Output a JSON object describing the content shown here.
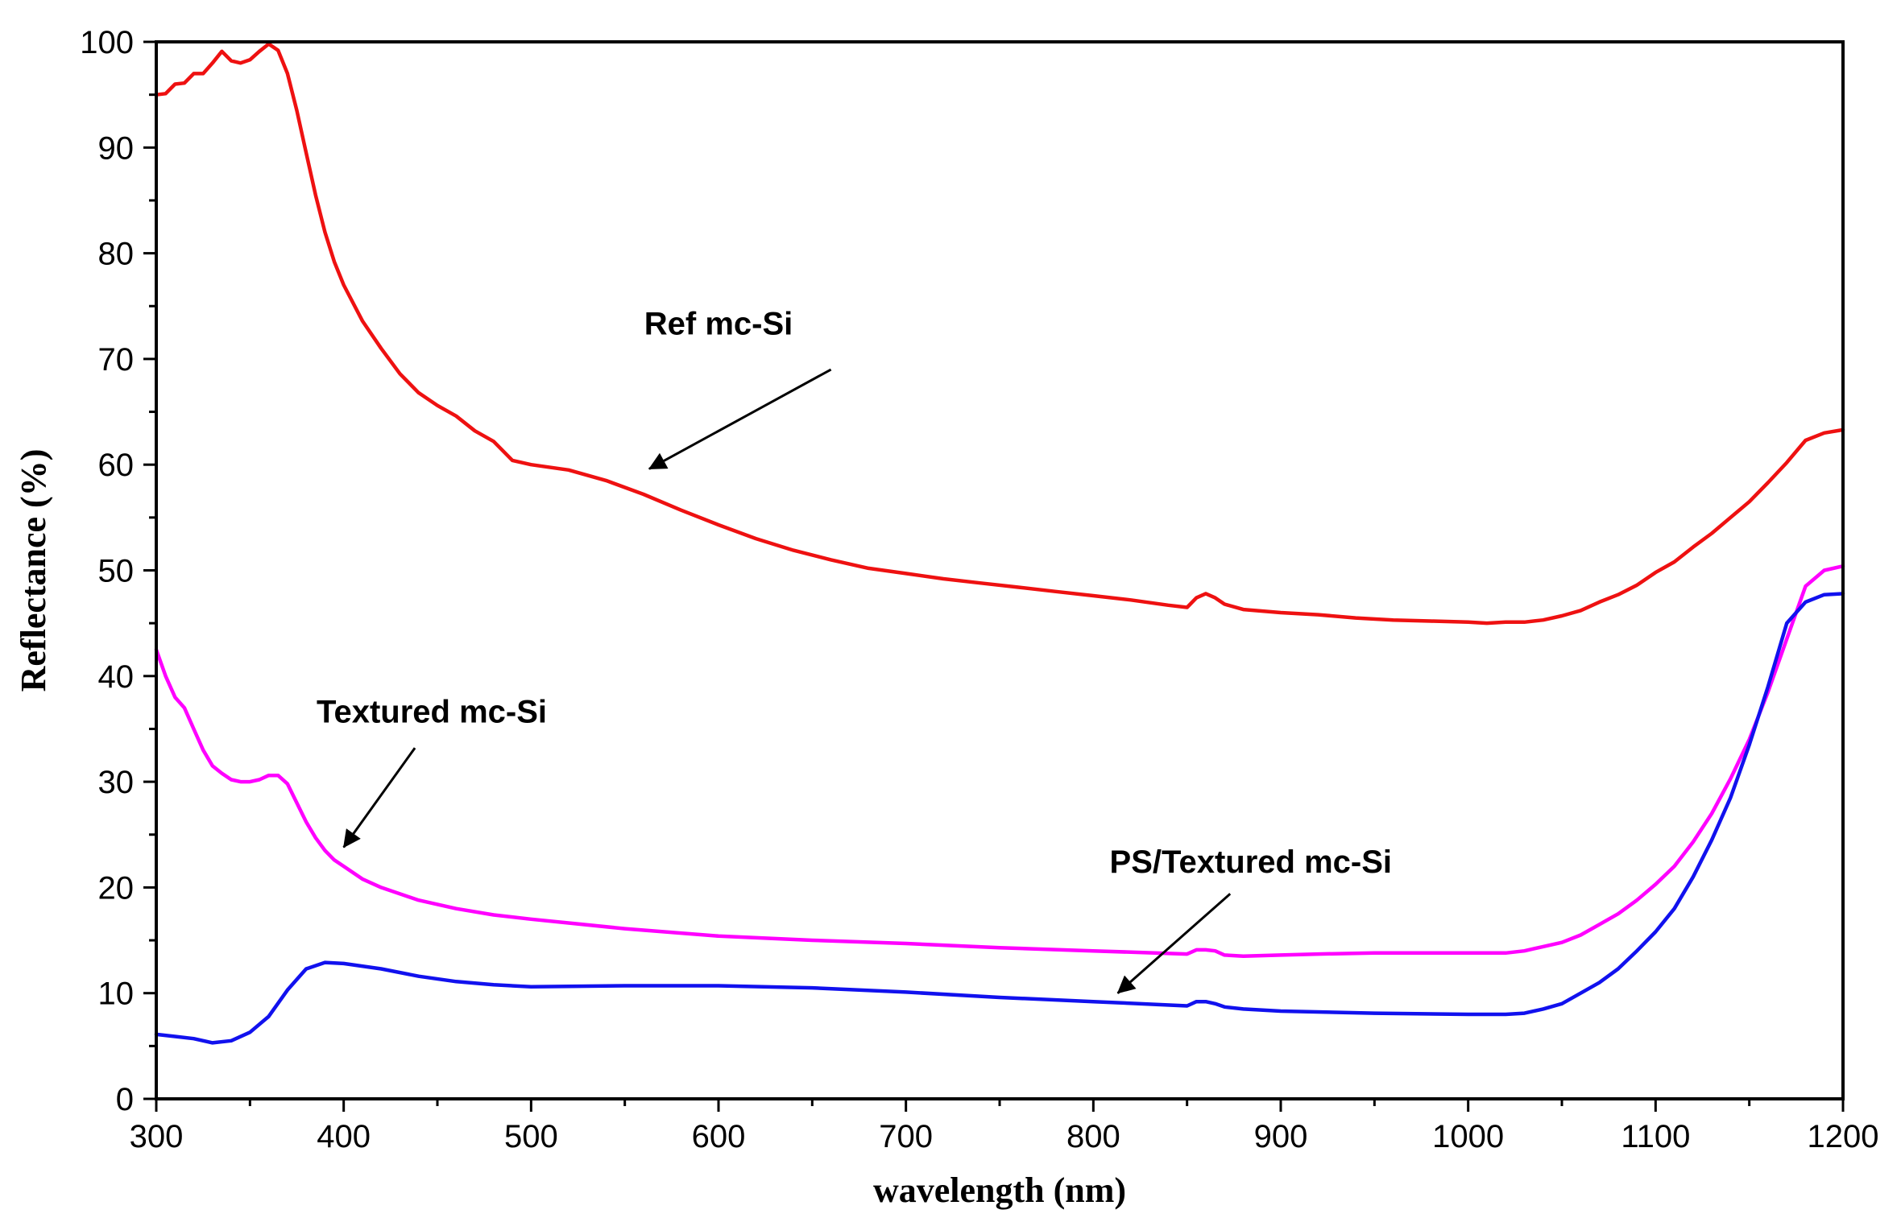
{
  "chart_data": {
    "type": "line",
    "title": "",
    "xlabel": "wavelength (nm)",
    "ylabel": "Reflectance (%)",
    "xlim": [
      300,
      1200
    ],
    "ylim": [
      0,
      100
    ],
    "x_ticks": [
      300,
      400,
      500,
      600,
      700,
      800,
      900,
      1000,
      1100,
      1200
    ],
    "y_ticks": [
      0,
      10,
      20,
      30,
      40,
      50,
      60,
      70,
      80,
      90,
      100
    ],
    "x_tick_labels": [
      "300",
      "400",
      "500",
      "600",
      "700",
      "800",
      "900",
      "1000",
      "1100",
      "1200"
    ],
    "y_tick_labels": [
      "0",
      "10",
      "20",
      "30",
      "40",
      "50",
      "60",
      "70",
      "80",
      "90",
      "100"
    ],
    "grid": false,
    "series": [
      {
        "name": "Ref mc-Si",
        "color": "#ee1111",
        "points": [
          [
            300,
            95
          ],
          [
            305,
            95.1
          ],
          [
            310,
            96
          ],
          [
            315,
            96.1
          ],
          [
            320,
            97
          ],
          [
            325,
            97
          ],
          [
            330,
            98
          ],
          [
            335,
            99.1
          ],
          [
            340,
            98.2
          ],
          [
            345,
            98
          ],
          [
            350,
            98.3
          ],
          [
            355,
            99.1
          ],
          [
            360,
            99.8
          ],
          [
            365,
            99.2
          ],
          [
            370,
            97
          ],
          [
            375,
            93.5
          ],
          [
            380,
            89.5
          ],
          [
            385,
            85.5
          ],
          [
            390,
            82
          ],
          [
            395,
            79.2
          ],
          [
            400,
            77
          ],
          [
            410,
            73.6
          ],
          [
            420,
            71
          ],
          [
            430,
            68.6
          ],
          [
            440,
            66.8
          ],
          [
            450,
            65.6
          ],
          [
            460,
            64.6
          ],
          [
            470,
            63.2
          ],
          [
            480,
            62.2
          ],
          [
            490,
            60.4
          ],
          [
            500,
            60
          ],
          [
            520,
            59.5
          ],
          [
            540,
            58.5
          ],
          [
            560,
            57.2
          ],
          [
            580,
            55.7
          ],
          [
            600,
            54.3
          ],
          [
            620,
            53
          ],
          [
            640,
            51.9
          ],
          [
            660,
            51
          ],
          [
            680,
            50.2
          ],
          [
            700,
            49.7
          ],
          [
            720,
            49.2
          ],
          [
            740,
            48.8
          ],
          [
            760,
            48.4
          ],
          [
            780,
            48
          ],
          [
            800,
            47.6
          ],
          [
            820,
            47.2
          ],
          [
            840,
            46.7
          ],
          [
            850,
            46.5
          ],
          [
            855,
            47.4
          ],
          [
            860,
            47.8
          ],
          [
            865,
            47.4
          ],
          [
            870,
            46.8
          ],
          [
            880,
            46.3
          ],
          [
            900,
            46
          ],
          [
            920,
            45.8
          ],
          [
            940,
            45.5
          ],
          [
            960,
            45.3
          ],
          [
            980,
            45.2
          ],
          [
            1000,
            45.1
          ],
          [
            1010,
            45
          ],
          [
            1020,
            45.1
          ],
          [
            1030,
            45.1
          ],
          [
            1040,
            45.3
          ],
          [
            1050,
            45.7
          ],
          [
            1060,
            46.2
          ],
          [
            1070,
            47
          ],
          [
            1080,
            47.7
          ],
          [
            1090,
            48.6
          ],
          [
            1100,
            49.8
          ],
          [
            1110,
            50.8
          ],
          [
            1120,
            52.2
          ],
          [
            1130,
            53.5
          ],
          [
            1140,
            55
          ],
          [
            1150,
            56.5
          ],
          [
            1160,
            58.3
          ],
          [
            1170,
            60.2
          ],
          [
            1180,
            62.3
          ],
          [
            1190,
            63
          ],
          [
            1200,
            63.3
          ]
        ]
      },
      {
        "name": "Textured mc-Si",
        "color": "#ff00ff",
        "points": [
          [
            300,
            42.5
          ],
          [
            305,
            40
          ],
          [
            310,
            38
          ],
          [
            315,
            37
          ],
          [
            320,
            35
          ],
          [
            325,
            33
          ],
          [
            330,
            31.5
          ],
          [
            335,
            30.8
          ],
          [
            340,
            30.2
          ],
          [
            345,
            30
          ],
          [
            350,
            30
          ],
          [
            355,
            30.2
          ],
          [
            360,
            30.6
          ],
          [
            365,
            30.6
          ],
          [
            370,
            29.8
          ],
          [
            375,
            28
          ],
          [
            380,
            26.2
          ],
          [
            385,
            24.7
          ],
          [
            390,
            23.5
          ],
          [
            395,
            22.6
          ],
          [
            400,
            22
          ],
          [
            410,
            20.8
          ],
          [
            420,
            20
          ],
          [
            440,
            18.8
          ],
          [
            460,
            18
          ],
          [
            480,
            17.4
          ],
          [
            500,
            17
          ],
          [
            550,
            16.1
          ],
          [
            600,
            15.4
          ],
          [
            650,
            15
          ],
          [
            700,
            14.7
          ],
          [
            750,
            14.3
          ],
          [
            800,
            14
          ],
          [
            850,
            13.7
          ],
          [
            855,
            14.1
          ],
          [
            860,
            14.1
          ],
          [
            865,
            14
          ],
          [
            870,
            13.6
          ],
          [
            880,
            13.5
          ],
          [
            900,
            13.6
          ],
          [
            920,
            13.7
          ],
          [
            950,
            13.8
          ],
          [
            1000,
            13.8
          ],
          [
            1020,
            13.8
          ],
          [
            1030,
            14
          ],
          [
            1040,
            14.4
          ],
          [
            1050,
            14.8
          ],
          [
            1060,
            15.5
          ],
          [
            1070,
            16.5
          ],
          [
            1080,
            17.5
          ],
          [
            1090,
            18.8
          ],
          [
            1100,
            20.3
          ],
          [
            1110,
            22
          ],
          [
            1120,
            24.3
          ],
          [
            1130,
            27
          ],
          [
            1140,
            30.3
          ],
          [
            1150,
            34
          ],
          [
            1160,
            38.5
          ],
          [
            1170,
            43.5
          ],
          [
            1180,
            48.5
          ],
          [
            1190,
            50
          ],
          [
            1200,
            50.4
          ]
        ]
      },
      {
        "name": "PS/Textured mc-Si",
        "color": "#1111ee",
        "points": [
          [
            300,
            6.1
          ],
          [
            310,
            5.9
          ],
          [
            320,
            5.7
          ],
          [
            330,
            5.3
          ],
          [
            340,
            5.5
          ],
          [
            350,
            6.3
          ],
          [
            360,
            7.8
          ],
          [
            370,
            10.3
          ],
          [
            380,
            12.3
          ],
          [
            390,
            12.9
          ],
          [
            400,
            12.8
          ],
          [
            420,
            12.3
          ],
          [
            440,
            11.6
          ],
          [
            460,
            11.1
          ],
          [
            480,
            10.8
          ],
          [
            500,
            10.6
          ],
          [
            550,
            10.7
          ],
          [
            600,
            10.7
          ],
          [
            650,
            10.5
          ],
          [
            700,
            10.1
          ],
          [
            750,
            9.6
          ],
          [
            800,
            9.2
          ],
          [
            850,
            8.8
          ],
          [
            855,
            9.2
          ],
          [
            860,
            9.2
          ],
          [
            865,
            9
          ],
          [
            870,
            8.7
          ],
          [
            880,
            8.5
          ],
          [
            900,
            8.3
          ],
          [
            950,
            8.1
          ],
          [
            1000,
            8
          ],
          [
            1020,
            8
          ],
          [
            1030,
            8.1
          ],
          [
            1040,
            8.5
          ],
          [
            1050,
            9
          ],
          [
            1060,
            10
          ],
          [
            1070,
            11
          ],
          [
            1080,
            12.3
          ],
          [
            1090,
            14
          ],
          [
            1100,
            15.8
          ],
          [
            1110,
            18
          ],
          [
            1120,
            21
          ],
          [
            1130,
            24.5
          ],
          [
            1140,
            28.5
          ],
          [
            1150,
            33.5
          ],
          [
            1160,
            39
          ],
          [
            1170,
            45
          ],
          [
            1180,
            47
          ],
          [
            1190,
            47.7
          ],
          [
            1200,
            47.8
          ]
        ]
      }
    ],
    "annotations": [
      {
        "text": "Ref mc-Si",
        "label_at": [
          600,
          72.3
        ],
        "arrow_from": [
          660,
          69
        ],
        "arrow_to": [
          563,
          59.6
        ]
      },
      {
        "text": "Textured mc-Si",
        "label_at": [
          447,
          35.6
        ],
        "arrow_from": [
          438,
          33.2
        ],
        "arrow_to": [
          400,
          23.8
        ]
      },
      {
        "text": "PS/Textured mc-Si",
        "label_at": [
          884,
          21.4
        ],
        "arrow_from": [
          873,
          19.4
        ],
        "arrow_to": [
          813,
          10
        ]
      }
    ]
  }
}
